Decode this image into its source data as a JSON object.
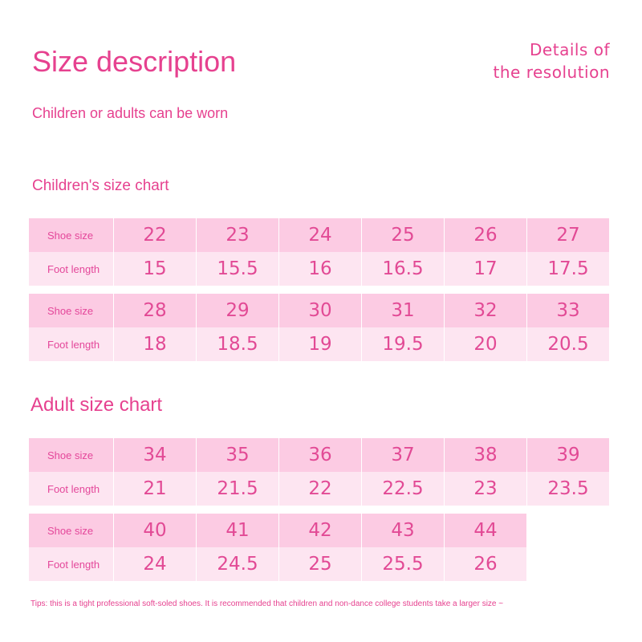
{
  "title": "Size description",
  "details": [
    "Details of",
    "the resolution"
  ],
  "subtitle": "Children or adults can be worn",
  "children_heading": "Children's size chart",
  "adult_heading": "Adult size chart",
  "row_labels": {
    "shoe": "Shoe size",
    "foot": "Foot length"
  },
  "children": [
    {
      "sizes": [
        "22",
        "23",
        "24",
        "25",
        "26",
        "27"
      ],
      "lengths": [
        "15",
        "15.5",
        "16",
        "16.5",
        "17",
        "17.5"
      ]
    },
    {
      "sizes": [
        "28",
        "29",
        "30",
        "31",
        "32",
        "33"
      ],
      "lengths": [
        "18",
        "18.5",
        "19",
        "19.5",
        "20",
        "20.5"
      ]
    }
  ],
  "adult": [
    {
      "sizes": [
        "34",
        "35",
        "36",
        "37",
        "38",
        "39"
      ],
      "lengths": [
        "21",
        "21.5",
        "22",
        "22.5",
        "23",
        "23.5"
      ]
    },
    {
      "sizes": [
        "40",
        "41",
        "42",
        "43",
        "44"
      ],
      "lengths": [
        "24",
        "24.5",
        "25",
        "25.5",
        "26"
      ]
    }
  ],
  "tips": "Tips: this is a tight professional soft-soled shoes. It is recommended that children and non-dance college students take a larger size ~"
}
